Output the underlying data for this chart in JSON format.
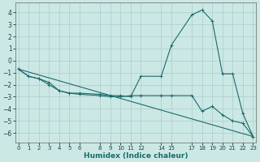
{
  "xlabel": "Humidex (Indice chaleur)",
  "background_color": "#cce8e5",
  "grid_color": "#aaccca",
  "line_color": "#1a6b6b",
  "x_ticks": [
    0,
    1,
    2,
    3,
    4,
    5,
    6,
    8,
    9,
    10,
    11,
    12,
    14,
    15,
    17,
    18,
    19,
    20,
    21,
    22,
    23
  ],
  "x_tick_labels": [
    "0",
    "1",
    "2",
    "3",
    "4",
    "5",
    "6",
    "8",
    "9",
    "10",
    "11",
    "12",
    "14",
    "15",
    "17",
    "18",
    "19",
    "20",
    "21",
    "22",
    "23"
  ],
  "ylim": [
    -6.8,
    4.8
  ],
  "xlim": [
    -0.3,
    23.3
  ],
  "yticks": [
    -6,
    -5,
    -4,
    -3,
    -2,
    -1,
    0,
    1,
    2,
    3,
    4
  ],
  "series": [
    {
      "x": [
        0,
        1,
        2,
        3,
        4,
        5,
        6,
        8,
        9,
        10,
        11,
        12,
        14,
        15,
        17,
        18,
        19,
        20,
        21,
        22,
        23
      ],
      "y": [
        -0.7,
        -1.3,
        -1.5,
        -1.8,
        -2.5,
        -2.7,
        -2.7,
        -2.8,
        -2.9,
        -2.9,
        -3.0,
        -1.3,
        -1.3,
        1.3,
        3.8,
        4.2,
        3.3,
        -1.1,
        -1.1,
        -4.4,
        -6.3
      ],
      "marker": true
    },
    {
      "x": [
        0,
        1,
        2,
        3,
        4,
        5,
        6,
        8,
        9,
        10,
        11,
        12,
        14,
        15,
        17,
        18,
        19,
        20,
        21,
        22,
        23
      ],
      "y": [
        -0.7,
        -1.3,
        -1.5,
        -2.0,
        -2.5,
        -2.7,
        -2.8,
        -2.9,
        -3.0,
        -3.0,
        -2.9,
        -2.9,
        -2.9,
        -2.9,
        -2.9,
        -4.2,
        -3.8,
        -4.5,
        -5.0,
        -5.2,
        -6.3
      ],
      "marker": true
    },
    {
      "x": [
        0,
        23
      ],
      "y": [
        -0.7,
        -6.3
      ],
      "marker": false
    }
  ]
}
